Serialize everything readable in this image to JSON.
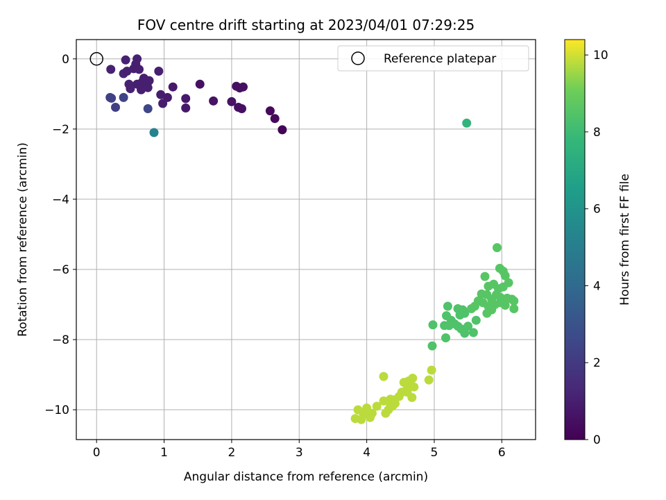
{
  "chart_data": {
    "type": "scatter",
    "title": "FOV centre drift starting at 2023/04/01 07:29:25",
    "xlabel": "Angular distance from reference (arcmin)",
    "ylabel": "Rotation from reference (arcmin)",
    "xlim": [
      -0.3,
      6.5
    ],
    "ylim": [
      -10.85,
      0.55
    ],
    "xticks": [
      0,
      1,
      2,
      3,
      4,
      5,
      6
    ],
    "yticks": [
      0,
      -2,
      -4,
      -6,
      -8,
      -10
    ],
    "xtick_labels": [
      "0",
      "1",
      "2",
      "3",
      "4",
      "5",
      "6"
    ],
    "ytick_labels": [
      "0",
      "−2",
      "−4",
      "−6",
      "−8",
      "−10"
    ],
    "grid": true,
    "legend": {
      "placement": "upper right",
      "entries": [
        "Reference platepar"
      ]
    },
    "reference_point": {
      "x": 0,
      "y": 0
    },
    "colorbar": {
      "label": "Hours from first FF file",
      "range": [
        0,
        10.4
      ],
      "ticks": [
        0,
        2,
        4,
        6,
        8,
        10
      ],
      "tick_labels": [
        "0",
        "2",
        "4",
        "6",
        "8",
        "10"
      ],
      "colormap": "viridis"
    },
    "points": [
      {
        "x": 0.21,
        "y": -0.3,
        "h": 1.1
      },
      {
        "x": 0.43,
        "y": -0.03,
        "h": 1.1
      },
      {
        "x": 0.6,
        "y": 0.0,
        "h": 1.1
      },
      {
        "x": 0.4,
        "y": -0.42,
        "h": 1.2
      },
      {
        "x": 0.45,
        "y": -0.35,
        "h": 1.1
      },
      {
        "x": 0.55,
        "y": -0.28,
        "h": 1.0
      },
      {
        "x": 0.58,
        "y": -0.15,
        "h": 1.0
      },
      {
        "x": 0.63,
        "y": -0.3,
        "h": 1.0
      },
      {
        "x": 0.7,
        "y": -0.55,
        "h": 1.0
      },
      {
        "x": 0.48,
        "y": -0.72,
        "h": 1.1
      },
      {
        "x": 0.5,
        "y": -0.85,
        "h": 1.1
      },
      {
        "x": 0.6,
        "y": -0.72,
        "h": 1.0
      },
      {
        "x": 0.68,
        "y": -0.65,
        "h": 1.0
      },
      {
        "x": 0.75,
        "y": -0.7,
        "h": 1.0
      },
      {
        "x": 0.78,
        "y": -0.62,
        "h": 1.0
      },
      {
        "x": 0.66,
        "y": -0.88,
        "h": 1.0
      },
      {
        "x": 0.76,
        "y": -0.82,
        "h": 1.0
      },
      {
        "x": 0.92,
        "y": -0.35,
        "h": 1.0
      },
      {
        "x": 0.95,
        "y": -1.02,
        "h": 0.9
      },
      {
        "x": 0.98,
        "y": -1.27,
        "h": 0.9
      },
      {
        "x": 1.05,
        "y": -1.1,
        "h": 0.9
      },
      {
        "x": 1.13,
        "y": -0.8,
        "h": 0.8
      },
      {
        "x": 1.32,
        "y": -1.13,
        "h": 0.8
      },
      {
        "x": 1.32,
        "y": -1.4,
        "h": 0.8
      },
      {
        "x": 1.53,
        "y": -0.72,
        "h": 0.5
      },
      {
        "x": 1.73,
        "y": -1.2,
        "h": 0.6
      },
      {
        "x": 2.0,
        "y": -1.22,
        "h": 0.6
      },
      {
        "x": 2.07,
        "y": -0.78,
        "h": 0.5
      },
      {
        "x": 2.12,
        "y": -0.83,
        "h": 0.5
      },
      {
        "x": 2.17,
        "y": -0.8,
        "h": 0.5
      },
      {
        "x": 2.1,
        "y": -1.38,
        "h": 0.5
      },
      {
        "x": 2.15,
        "y": -1.42,
        "h": 0.5
      },
      {
        "x": 2.57,
        "y": -1.48,
        "h": 0.3
      },
      {
        "x": 2.64,
        "y": -1.7,
        "h": 0.3
      },
      {
        "x": 2.75,
        "y": -2.02,
        "h": 0.1
      },
      {
        "x": 0.2,
        "y": -1.1,
        "h": 2.3
      },
      {
        "x": 0.22,
        "y": -1.12,
        "h": 2.3
      },
      {
        "x": 0.28,
        "y": -1.38,
        "h": 2.2
      },
      {
        "x": 0.4,
        "y": -1.1,
        "h": 2.4
      },
      {
        "x": 0.76,
        "y": -1.42,
        "h": 2.5
      },
      {
        "x": 0.85,
        "y": -2.1,
        "h": 5.2
      },
      {
        "x": 5.48,
        "y": -1.83,
        "h": 7.6
      },
      {
        "x": 5.93,
        "y": -5.38,
        "h": 8.6
      },
      {
        "x": 5.97,
        "y": -5.97,
        "h": 8.6
      },
      {
        "x": 6.02,
        "y": -6.05,
        "h": 8.6
      },
      {
        "x": 6.05,
        "y": -6.18,
        "h": 8.6
      },
      {
        "x": 5.75,
        "y": -6.2,
        "h": 8.6
      },
      {
        "x": 5.8,
        "y": -6.48,
        "h": 8.6
      },
      {
        "x": 5.88,
        "y": -6.42,
        "h": 8.6
      },
      {
        "x": 5.95,
        "y": -6.55,
        "h": 8.6
      },
      {
        "x": 6.1,
        "y": -6.38,
        "h": 8.6
      },
      {
        "x": 6.02,
        "y": -6.5,
        "h": 8.6
      },
      {
        "x": 5.7,
        "y": -6.7,
        "h": 8.6
      },
      {
        "x": 5.78,
        "y": -6.72,
        "h": 8.6
      },
      {
        "x": 5.85,
        "y": -6.85,
        "h": 8.6
      },
      {
        "x": 5.92,
        "y": -6.72,
        "h": 8.6
      },
      {
        "x": 6.0,
        "y": -6.9,
        "h": 8.6
      },
      {
        "x": 6.08,
        "y": -6.82,
        "h": 8.6
      },
      {
        "x": 6.15,
        "y": -6.85,
        "h": 8.6
      },
      {
        "x": 6.18,
        "y": -6.9,
        "h": 8.6
      },
      {
        "x": 5.65,
        "y": -6.9,
        "h": 8.6
      },
      {
        "x": 5.72,
        "y": -6.95,
        "h": 8.6
      },
      {
        "x": 5.8,
        "y": -7.05,
        "h": 8.6
      },
      {
        "x": 5.9,
        "y": -7.0,
        "h": 8.6
      },
      {
        "x": 5.98,
        "y": -6.95,
        "h": 8.6
      },
      {
        "x": 6.05,
        "y": -7.02,
        "h": 8.6
      },
      {
        "x": 5.6,
        "y": -7.05,
        "h": 8.6
      },
      {
        "x": 5.55,
        "y": -7.12,
        "h": 8.6
      },
      {
        "x": 5.85,
        "y": -7.15,
        "h": 8.6
      },
      {
        "x": 5.78,
        "y": -7.25,
        "h": 8.6
      },
      {
        "x": 6.18,
        "y": -7.12,
        "h": 8.6
      },
      {
        "x": 5.98,
        "y": -6.8,
        "h": 8.6
      },
      {
        "x": 5.2,
        "y": -7.05,
        "h": 8.4
      },
      {
        "x": 5.35,
        "y": -7.12,
        "h": 8.4
      },
      {
        "x": 5.42,
        "y": -7.15,
        "h": 8.4
      },
      {
        "x": 5.38,
        "y": -7.3,
        "h": 8.4
      },
      {
        "x": 5.45,
        "y": -7.25,
        "h": 8.4
      },
      {
        "x": 5.18,
        "y": -7.32,
        "h": 8.4
      },
      {
        "x": 5.25,
        "y": -7.45,
        "h": 8.4
      },
      {
        "x": 5.3,
        "y": -7.55,
        "h": 8.4
      },
      {
        "x": 5.62,
        "y": -7.45,
        "h": 8.4
      },
      {
        "x": 4.98,
        "y": -7.58,
        "h": 8.4
      },
      {
        "x": 5.15,
        "y": -7.6,
        "h": 8.4
      },
      {
        "x": 5.22,
        "y": -7.6,
        "h": 8.4
      },
      {
        "x": 5.35,
        "y": -7.62,
        "h": 8.4
      },
      {
        "x": 5.4,
        "y": -7.7,
        "h": 8.4
      },
      {
        "x": 5.5,
        "y": -7.62,
        "h": 8.4
      },
      {
        "x": 5.45,
        "y": -7.82,
        "h": 8.4
      },
      {
        "x": 5.58,
        "y": -7.8,
        "h": 8.4
      },
      {
        "x": 5.17,
        "y": -7.95,
        "h": 8.4
      },
      {
        "x": 4.97,
        "y": -8.18,
        "h": 8.4
      },
      {
        "x": 4.96,
        "y": -8.87,
        "h": 9.8
      },
      {
        "x": 4.92,
        "y": -9.15,
        "h": 9.8
      },
      {
        "x": 4.25,
        "y": -9.05,
        "h": 9.8
      },
      {
        "x": 4.68,
        "y": -9.1,
        "h": 9.8
      },
      {
        "x": 4.62,
        "y": -9.18,
        "h": 9.8
      },
      {
        "x": 4.55,
        "y": -9.22,
        "h": 9.8
      },
      {
        "x": 4.65,
        "y": -9.3,
        "h": 9.8
      },
      {
        "x": 4.6,
        "y": -9.4,
        "h": 9.8
      },
      {
        "x": 4.7,
        "y": -9.35,
        "h": 9.8
      },
      {
        "x": 4.52,
        "y": -9.5,
        "h": 9.8
      },
      {
        "x": 4.48,
        "y": -9.62,
        "h": 9.8
      },
      {
        "x": 4.6,
        "y": -9.5,
        "h": 9.8
      },
      {
        "x": 4.67,
        "y": -9.65,
        "h": 9.8
      },
      {
        "x": 4.4,
        "y": -9.72,
        "h": 9.8
      },
      {
        "x": 4.35,
        "y": -9.7,
        "h": 9.8
      },
      {
        "x": 4.25,
        "y": -9.75,
        "h": 9.8
      },
      {
        "x": 4.42,
        "y": -9.82,
        "h": 9.8
      },
      {
        "x": 4.38,
        "y": -9.9,
        "h": 9.8
      },
      {
        "x": 4.15,
        "y": -9.9,
        "h": 9.8
      },
      {
        "x": 4.32,
        "y": -10.0,
        "h": 9.8
      },
      {
        "x": 4.28,
        "y": -10.1,
        "h": 9.8
      },
      {
        "x": 4.0,
        "y": -9.95,
        "h": 9.8
      },
      {
        "x": 3.87,
        "y": -10.0,
        "h": 9.8
      },
      {
        "x": 3.95,
        "y": -10.12,
        "h": 9.8
      },
      {
        "x": 4.08,
        "y": -10.1,
        "h": 9.8
      },
      {
        "x": 4.05,
        "y": -10.22,
        "h": 9.8
      },
      {
        "x": 3.83,
        "y": -10.25,
        "h": 9.8
      },
      {
        "x": 3.92,
        "y": -10.28,
        "h": 9.8
      },
      {
        "x": 4.35,
        "y": -9.85,
        "h": 9.8
      }
    ]
  }
}
